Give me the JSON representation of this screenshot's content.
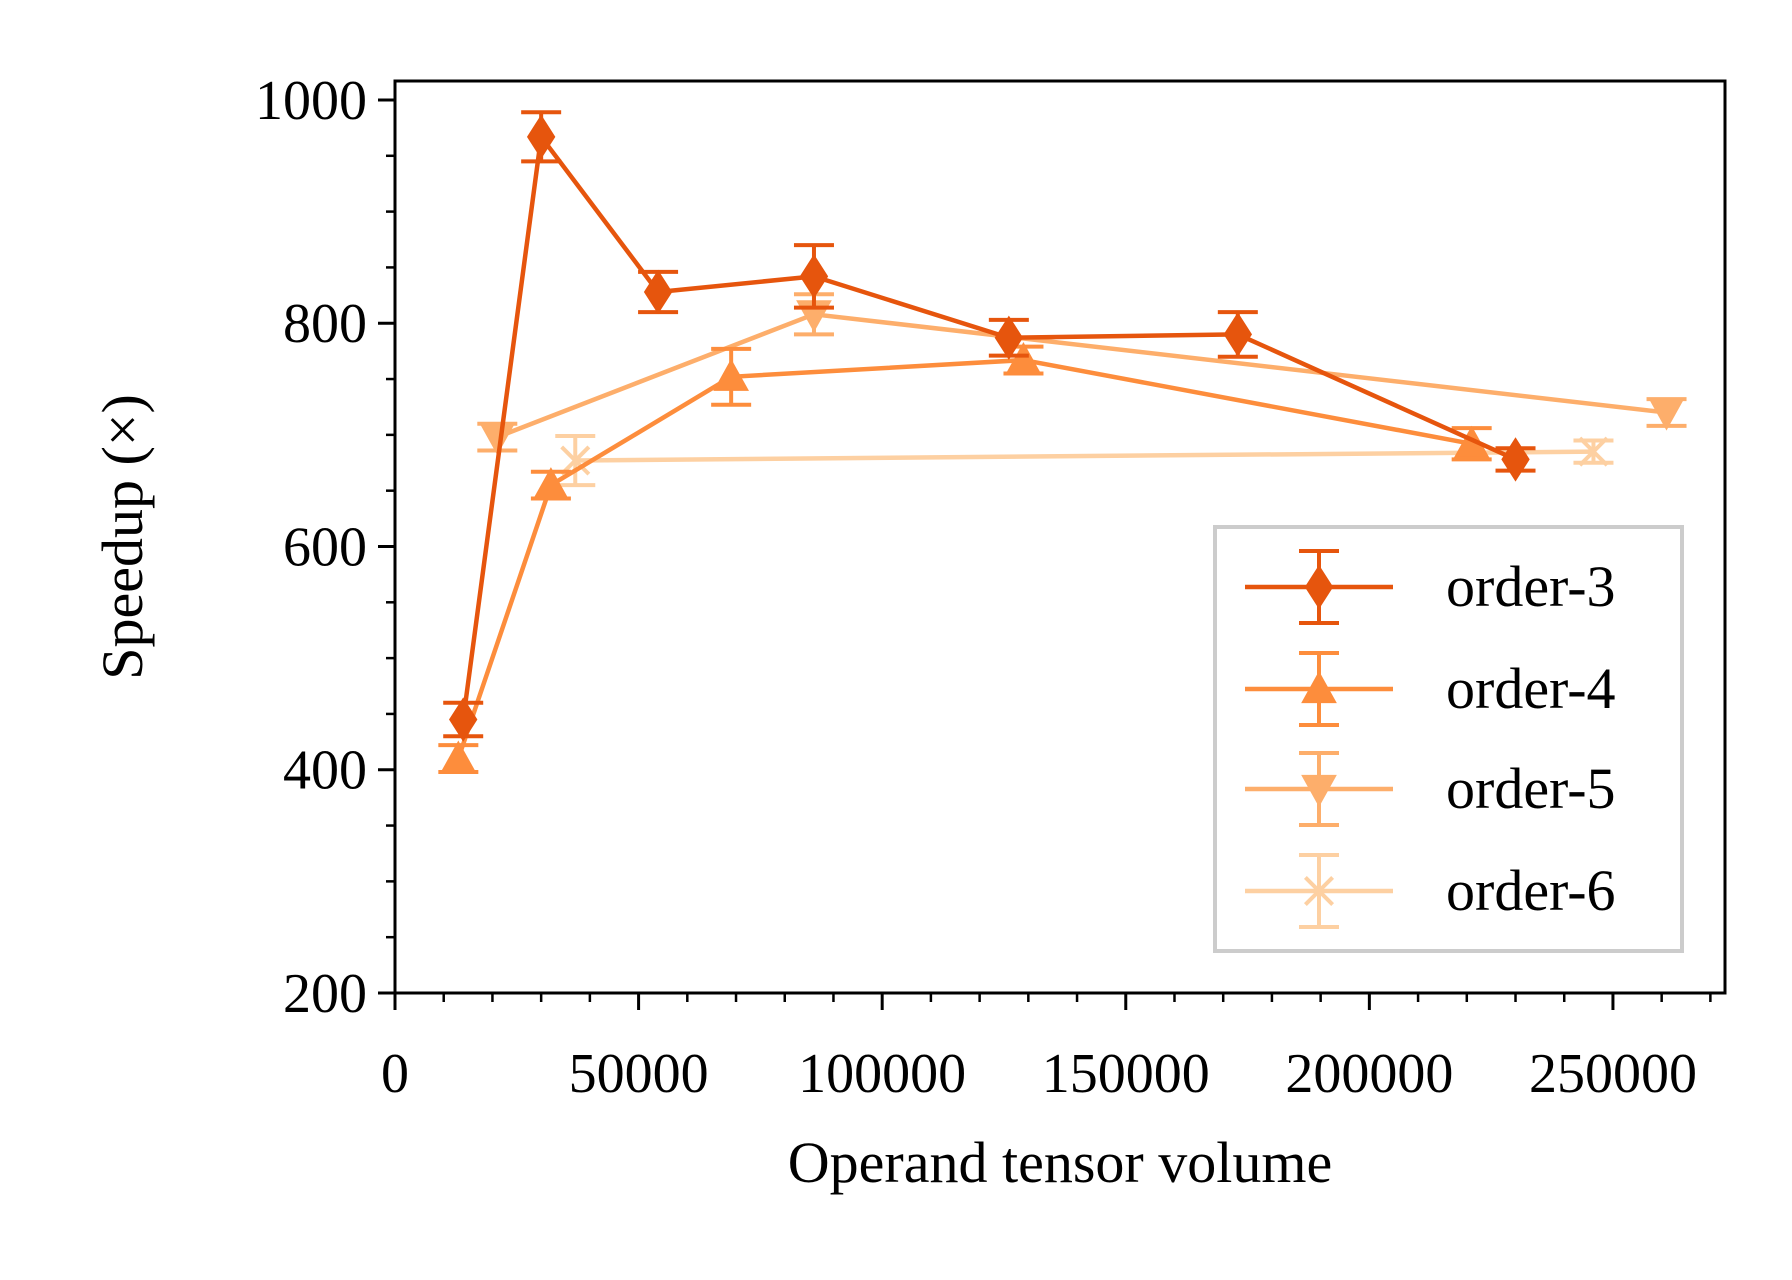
{
  "chart_data": {
    "type": "line",
    "xlabel": "Operand tensor volume",
    "ylabel": "Speedup (×)",
    "xlim": [
      0,
      273000
    ],
    "ylim": [
      200,
      1017
    ],
    "x_ticks": [
      0,
      50000,
      100000,
      150000,
      200000,
      250000
    ],
    "x_tick_labels": [
      "0",
      "50000",
      "100000",
      "150000",
      "200000",
      "250000"
    ],
    "x_minor_step": 10000,
    "y_ticks": [
      200,
      400,
      600,
      800,
      1000
    ],
    "y_tick_labels": [
      "200",
      "400",
      "600",
      "800",
      "1000"
    ],
    "y_minor_step": 50,
    "grid": false,
    "legend_position": "lower-right",
    "series": [
      {
        "name": "order-3",
        "color": "#e6550d",
        "marker": "diamond",
        "x": [
          14000,
          30000,
          54000,
          86000,
          126000,
          173000,
          230000
        ],
        "y": [
          445,
          967,
          828,
          842,
          787,
          790,
          678
        ],
        "err": [
          15,
          22,
          18,
          28,
          16,
          20,
          10
        ]
      },
      {
        "name": "order-4",
        "color": "#fd8d3c",
        "marker": "triangle-up",
        "x": [
          13000,
          32000,
          69000,
          129000,
          221000
        ],
        "y": [
          410,
          655,
          752,
          767,
          692
        ],
        "err": [
          12,
          12,
          25,
          12,
          14
        ]
      },
      {
        "name": "order-5",
        "color": "#fdae6b",
        "marker": "triangle-down",
        "x": [
          21000,
          86000,
          261000
        ],
        "y": [
          698,
          808,
          720
        ],
        "err": [
          12,
          18,
          12
        ]
      },
      {
        "name": "order-6",
        "color": "#fdd0a2",
        "marker": "x",
        "x": [
          37000,
          246000
        ],
        "y": [
          677,
          685
        ],
        "err": [
          22,
          10
        ]
      }
    ]
  }
}
